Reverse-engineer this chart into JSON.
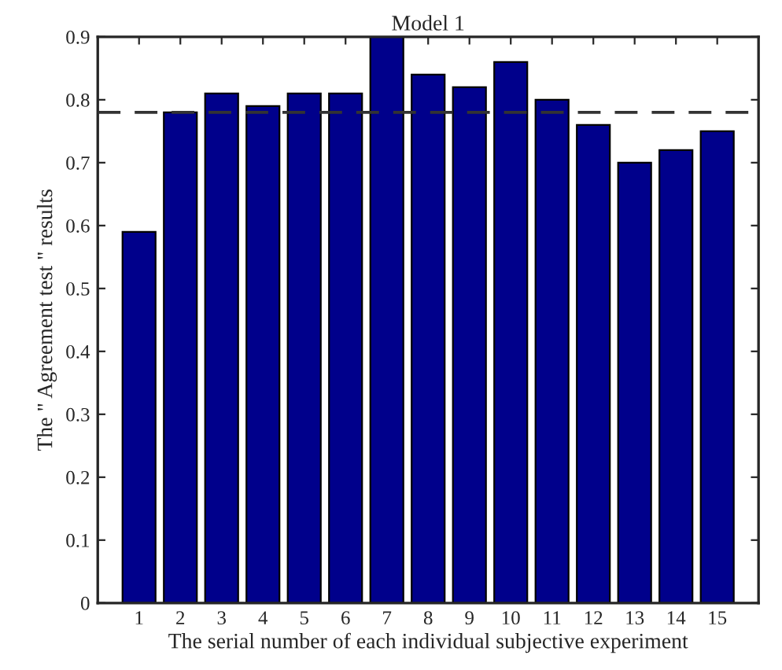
{
  "chart_data": {
    "type": "bar",
    "title": "Model 1",
    "xlabel": "The serial number of each individual subjective experiment",
    "ylabel": "The \" Agreement test \" results",
    "categories": [
      "1",
      "2",
      "3",
      "4",
      "5",
      "6",
      "7",
      "8",
      "9",
      "10",
      "11",
      "12",
      "13",
      "14",
      "15"
    ],
    "series": [
      {
        "color": "#00008b",
        "values": [
          0.59,
          0.78,
          0.81,
          0.79,
          0.81,
          0.81,
          0.9,
          0.84,
          0.82,
          0.86,
          0.8,
          0.76,
          0.7,
          0.72,
          0.75
        ]
      }
    ],
    "ylim": [
      0,
      0.9
    ],
    "yticks": [
      0,
      0.1,
      0.2,
      0.3,
      0.4,
      0.5,
      0.6,
      0.7,
      0.8,
      0.9
    ],
    "ref_lines": [
      {
        "axis": "y",
        "value": 0.78,
        "color": "#333333",
        "line_style": "dashed"
      }
    ],
    "grid": false,
    "legend": false
  }
}
